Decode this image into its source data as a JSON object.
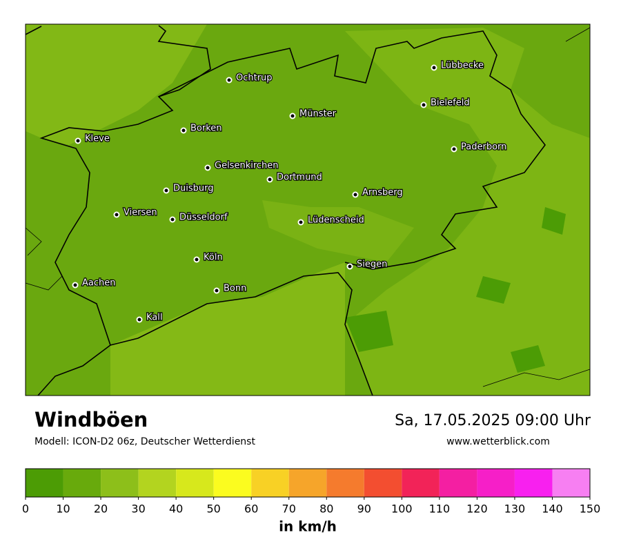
{
  "title": "Windböen",
  "subtitle": "Modell: ICON-D2 06z, Deutscher Wetterdienst",
  "date": "Sa, 17.05.2025 09:00 Uhr",
  "website": "www.wetterblick.com",
  "cities": [
    {
      "label": "Lübbecke"
    },
    {
      "label": "Ochtrup"
    },
    {
      "label": "Bielefeld"
    },
    {
      "label": "Münster"
    },
    {
      "label": "Borken"
    },
    {
      "label": "Kleve"
    },
    {
      "label": "Paderborn"
    },
    {
      "label": "Gelsenkirchen"
    },
    {
      "label": "Dortmund"
    },
    {
      "label": "Duisburg"
    },
    {
      "label": "Arnsberg"
    },
    {
      "label": "Viersen"
    },
    {
      "label": "Düsseldorf"
    },
    {
      "label": "Lüdenscheid"
    },
    {
      "label": "Köln"
    },
    {
      "label": "Siegen"
    },
    {
      "label": "Aachen"
    },
    {
      "label": "Bonn"
    },
    {
      "label": "Kall"
    }
  ],
  "legend": {
    "unit": "in km/h",
    "ticks": [
      0,
      10,
      20,
      30,
      40,
      50,
      60,
      70,
      80,
      90,
      100,
      110,
      120,
      130,
      140,
      150
    ],
    "colors": [
      "#4c9c05",
      "#68aa0c",
      "#8dbf1a",
      "#b3d41f",
      "#d7e81c",
      "#fbfc1f",
      "#f8d125",
      "#f6a52a",
      "#f57b2d",
      "#f34e30",
      "#f22358",
      "#f41fa2",
      "#f61fc8",
      "#f820ef",
      "#f77ff2"
    ]
  }
}
